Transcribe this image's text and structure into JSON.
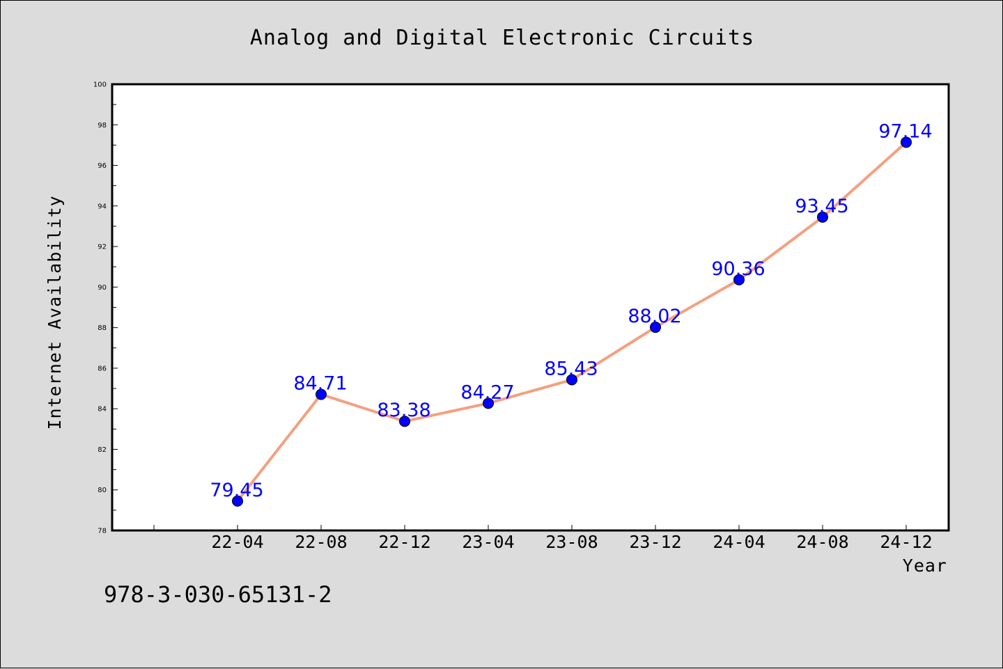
{
  "chart_data": {
    "type": "line",
    "title": "Analog and Digital Electronic Circuits",
    "xlabel": "Year",
    "ylabel": "Internet Availability",
    "categories": [
      "22-04",
      "22-08",
      "22-12",
      "23-04",
      "23-08",
      "23-12",
      "24-04",
      "24-08",
      "24-12"
    ],
    "series": [
      {
        "values": [
          79.45,
          84.71,
          83.38,
          84.27,
          85.43,
          88.02,
          90.36,
          93.45,
          97.14
        ],
        "data_labels": [
          "79.45",
          "84.71",
          "83.38",
          "84.27",
          "85.43",
          "88.02",
          "90.36",
          "93.45",
          "97.14"
        ]
      }
    ],
    "ylim": [
      78,
      100
    ],
    "yticks": [
      "78",
      "80",
      "82",
      "84",
      "86",
      "88",
      "90",
      "92",
      "94",
      "96",
      "98",
      "100"
    ],
    "grid": false,
    "legend": "none",
    "colors": {
      "line": "#f4a07f",
      "marker": "#0000ff",
      "data_label": "#0000ff",
      "background": "#dcdcdc",
      "plot_area": "#ffffff"
    }
  },
  "annotation": "978-3-030-65131-2"
}
